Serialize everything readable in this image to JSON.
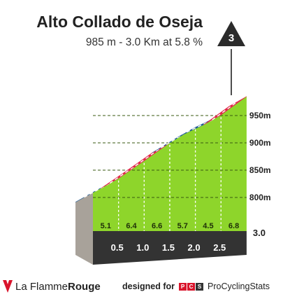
{
  "header": {
    "title": "Alto Collado de Oseja",
    "subtitle": "985 m - 3.0 Km at 5.8 %"
  },
  "category_badge": "3",
  "chart_data": {
    "type": "area",
    "title": "Alto Collado de Oseja",
    "subtitle": "985 m - 3.0 Km at 5.8 %",
    "x_unit": "km",
    "y_unit": "m",
    "xlim": [
      0,
      3.0
    ],
    "ylim": [
      770,
      985
    ],
    "distance_ticks": [
      "0.5",
      "1.0",
      "1.5",
      "2.0",
      "2.5",
      "3.0"
    ],
    "distance_values": [
      0.5,
      1.0,
      1.5,
      2.0,
      2.5,
      3.0
    ],
    "altitude_ticks": [
      "800m",
      "850m",
      "900m",
      "950m"
    ],
    "altitude_values": [
      800,
      850,
      900,
      950
    ],
    "segments": [
      {
        "from_km": 0.0,
        "to_km": 0.5,
        "gradient": "5.1",
        "gradient_value": 5.1
      },
      {
        "from_km": 0.5,
        "to_km": 1.0,
        "gradient": "6.4",
        "gradient_value": 6.4
      },
      {
        "from_km": 1.0,
        "to_km": 1.5,
        "gradient": "6.6",
        "gradient_value": 6.6
      },
      {
        "from_km": 1.5,
        "to_km": 2.0,
        "gradient": "5.7",
        "gradient_value": 5.7
      },
      {
        "from_km": 2.0,
        "to_km": 2.5,
        "gradient": "4.5",
        "gradient_value": 4.5
      },
      {
        "from_km": 2.5,
        "to_km": 3.0,
        "gradient": "6.8",
        "gradient_value": 6.8
      }
    ],
    "summit_altitude": 985,
    "grid": true,
    "colors": {
      "fill": "#8ed52b",
      "road_red": "#e0294a",
      "road_blue": "#1f5c96",
      "base": "#333333",
      "side": "#a8a29a"
    }
  },
  "footer": {
    "brand_regular": "La Flamme",
    "brand_bold": "Rouge",
    "designed_for": "designed for",
    "pcs_letters": [
      "P",
      "C",
      "S"
    ],
    "pcs_name": "ProCyclingStats"
  }
}
